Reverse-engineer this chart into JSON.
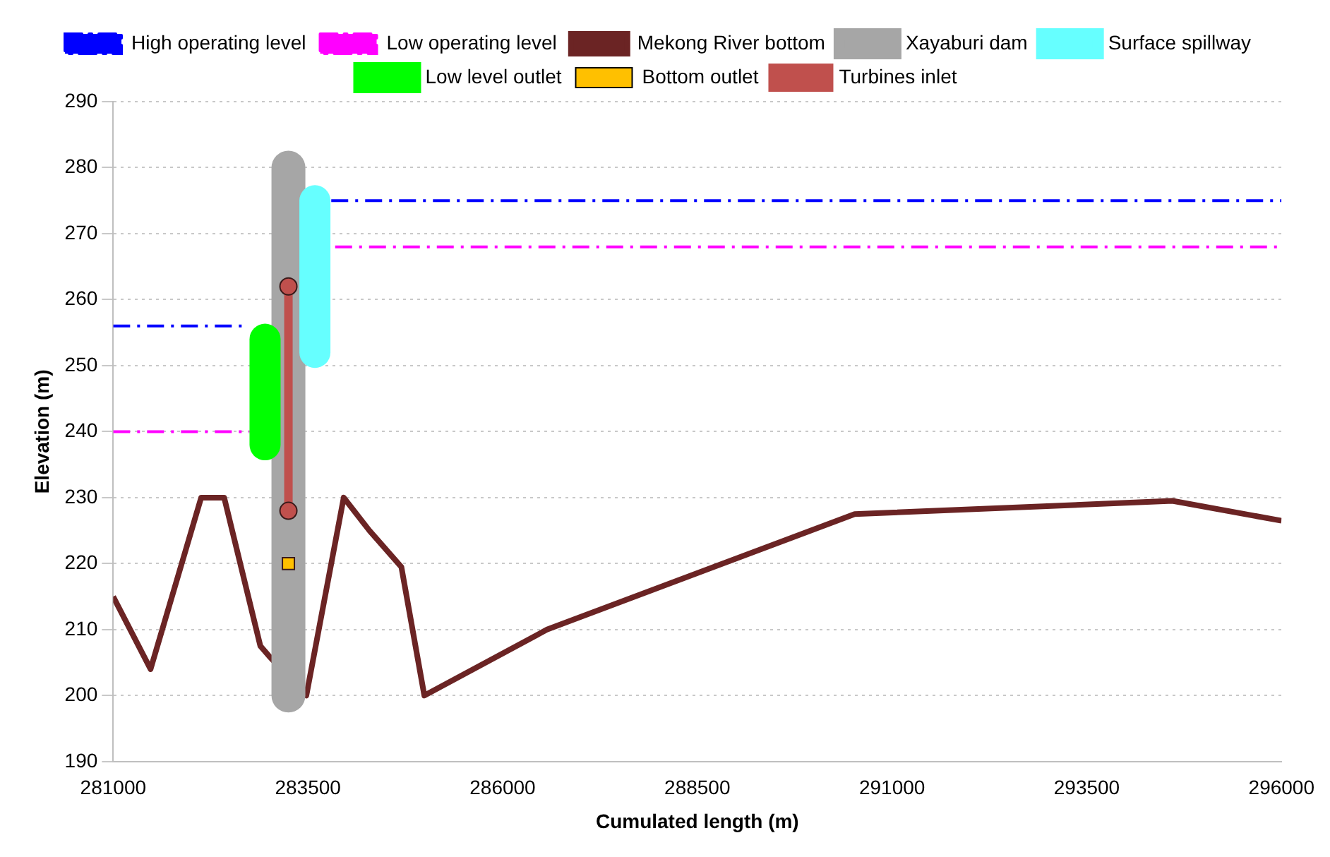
{
  "chart_data": {
    "type": "line",
    "xlabel": "Cumulated length (m)",
    "ylabel": "Elevation (m)",
    "xlim": [
      281000,
      296000
    ],
    "xticks": [
      281000,
      283500,
      286000,
      288500,
      291000,
      293500,
      296000
    ],
    "ylim": [
      190,
      290
    ],
    "yticks": [
      190,
      200,
      210,
      220,
      230,
      240,
      250,
      260,
      270,
      280,
      290
    ],
    "grid": "y",
    "legend": "top",
    "series": [
      {
        "name": "High operating level",
        "color": "#0000ff",
        "line_style": "dashed",
        "marker": "none",
        "x": [
          281000,
          282700,
          282701,
          283800,
          296000
        ],
        "values": [
          256,
          256,
          null,
          275,
          275
        ]
      },
      {
        "name": "Low operating level",
        "color": "#ff00ff",
        "line_style": "dashed",
        "marker": "none",
        "x": [
          281000,
          282750,
          282751,
          283850,
          296000
        ],
        "values": [
          240,
          240,
          null,
          268,
          268
        ]
      },
      {
        "name": "Mekong River bottom",
        "color": "#6b2424",
        "line_style": "solid",
        "marker": "none",
        "x": [
          281000,
          281480,
          282130,
          282425,
          282890,
          283000,
          283480,
          283960,
          284290,
          284700,
          284995,
          286570,
          290520,
          294600,
          296000
        ],
        "values": [
          215,
          204,
          230,
          230,
          207.5,
          206,
          200,
          230,
          225,
          219.5,
          200,
          210,
          227.5,
          229.5,
          226.5
        ]
      },
      {
        "name": "Xayaburi dam",
        "color": "#a6a6a6",
        "line_style": "solid",
        "marker": "none",
        "x": [
          283250,
          283250
        ],
        "values": [
          200,
          280
        ]
      },
      {
        "name": "Surface spillway",
        "color": "#66ffff",
        "line_style": "solid",
        "marker": "none",
        "x": [
          283590,
          283590
        ],
        "values": [
          252,
          275
        ]
      },
      {
        "name": "Low level outlet",
        "color": "#00ff00",
        "line_style": "solid",
        "marker": "none",
        "x": [
          282950,
          282950
        ],
        "values": [
          238,
          254
        ]
      },
      {
        "name": "Bottom outlet",
        "type": "scatter",
        "color": "#ffc000",
        "marker": "square",
        "x": [
          283250
        ],
        "values": [
          220
        ]
      },
      {
        "name": "Turbines inlet",
        "color": "#c0504d",
        "line_style": "solid",
        "marker": "circle",
        "x": [
          283250,
          283250
        ],
        "values": [
          228,
          262
        ]
      }
    ]
  }
}
